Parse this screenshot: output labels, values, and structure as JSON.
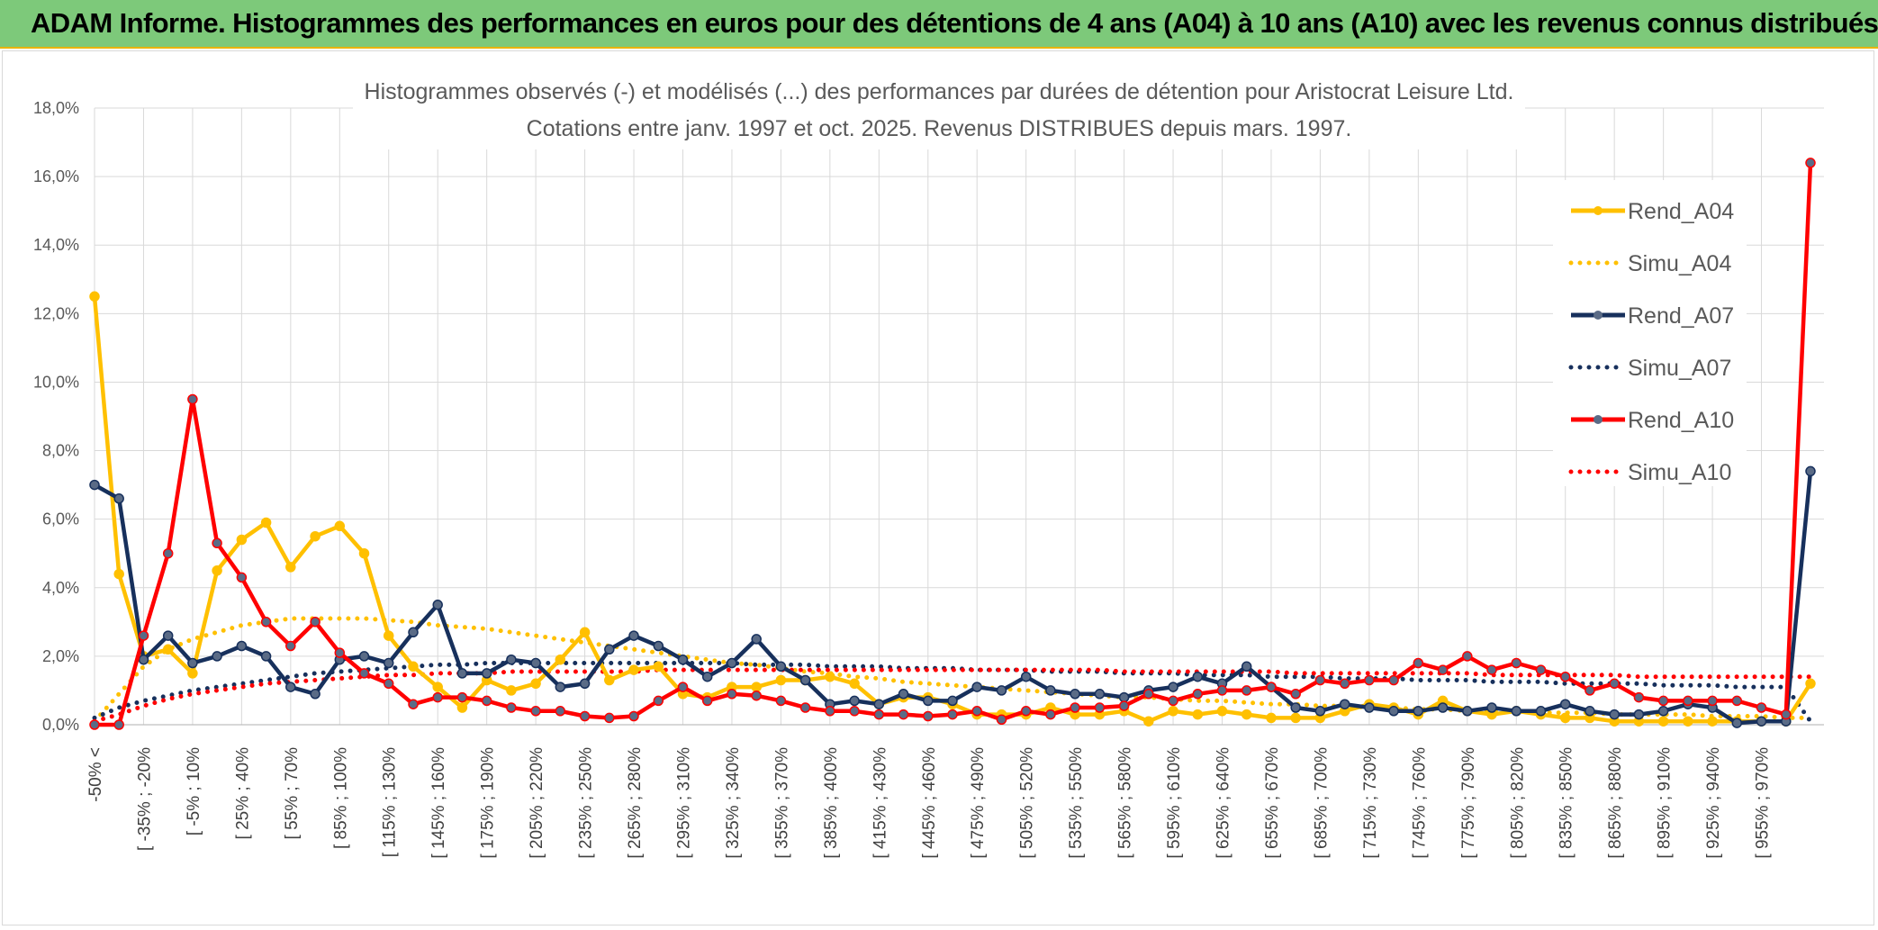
{
  "page": {
    "banner_title": "ADAM Informe. Histogrammes des performances en euros pour des détentions de 4 ans (A04) à 10 ans (A10) avec les revenus connus distribués"
  },
  "chart_data": {
    "type": "line",
    "title": "Histogrammes observés (-) et modélisés (...) des performances par durées de détention pour Aristocrat Leisure Ltd.",
    "subtitle": "Cotations entre janv. 1997 et oct. 2025. Revenus DISTRIBUES depuis mars. 1997.",
    "ylim": [
      0,
      18
    ],
    "yticks": [
      "0,0%",
      "2,0%",
      "4,0%",
      "6,0%",
      "8,0%",
      "10,0%",
      "12,0%",
      "14,0%",
      "16,0%",
      "18,0%"
    ],
    "x_tick_labels": [
      "-50% <",
      "[ -35% ; -20%",
      "[ -5% ; 10%",
      "[ 25% ; 40%",
      "[ 55% ; 70%",
      "[ 85% ; 100%",
      "[ 115% ; 130%",
      "[ 145% ; 160%",
      "[ 175% ; 190%",
      "[ 205% ; 220%",
      "[ 235% ; 250%",
      "[ 265% ; 280%",
      "[ 295% ; 310%",
      "[ 325% ; 340%",
      "[ 355% ; 370%",
      "[ 385% ; 400%",
      "[ 415% ; 430%",
      "[ 445% ; 460%",
      "[ 475% ; 490%",
      "[ 505% ; 520%",
      "[ 535% ; 550%",
      "[ 565% ; 580%",
      "[ 595% ; 610%",
      "[ 625% ; 640%",
      "[ 655% ; 670%",
      "[ 685% ; 700%",
      "[ 715% ; 730%",
      "[ 745% ; 760%",
      "[ 775% ; 790%",
      "[ 805% ; 820%",
      "[ 835% ; 850%",
      "[ 865% ; 880%",
      "[ 895% ; 910%",
      "[ 925% ; 940%",
      "[ 955% ; 970%"
    ],
    "n_points": 71,
    "grid": true,
    "legend_position": "top-right",
    "series": [
      {
        "name": "Rend_A04",
        "style": "solid",
        "markers": true,
        "color": "#FFC000",
        "values": [
          12.5,
          4.4,
          2.0,
          2.2,
          1.5,
          4.5,
          5.4,
          5.9,
          4.6,
          5.5,
          5.8,
          5.0,
          2.6,
          1.7,
          1.1,
          0.5,
          1.3,
          1.0,
          1.2,
          1.9,
          2.7,
          1.3,
          1.6,
          1.7,
          0.9,
          0.8,
          1.1,
          1.1,
          1.3,
          1.3,
          1.4,
          1.2,
          0.6,
          0.8,
          0.8,
          0.6,
          0.3,
          0.3,
          0.3,
          0.5,
          0.3,
          0.3,
          0.4,
          0.1,
          0.4,
          0.3,
          0.4,
          0.3,
          0.2,
          0.2,
          0.2,
          0.4,
          0.6,
          0.5,
          0.3,
          0.7,
          0.4,
          0.3,
          0.4,
          0.3,
          0.2,
          0.2,
          0.1,
          0.1,
          0.1,
          0.1,
          0.1,
          0.1,
          0.1,
          0.1,
          1.2
        ]
      },
      {
        "name": "Simu_A04",
        "style": "dotted",
        "markers": false,
        "color": "#FFC000",
        "values": [
          0.1,
          0.9,
          1.7,
          2.2,
          2.5,
          2.7,
          2.9,
          3.0,
          3.1,
          3.1,
          3.1,
          3.1,
          3.05,
          3.0,
          2.9,
          2.85,
          2.8,
          2.7,
          2.6,
          2.5,
          2.4,
          2.3,
          2.2,
          2.1,
          2.0,
          1.9,
          1.8,
          1.75,
          1.65,
          1.55,
          1.5,
          1.4,
          1.35,
          1.25,
          1.2,
          1.15,
          1.1,
          1.05,
          1.0,
          0.95,
          0.9,
          0.85,
          0.8,
          0.8,
          0.75,
          0.7,
          0.7,
          0.65,
          0.6,
          0.6,
          0.55,
          0.55,
          0.5,
          0.5,
          0.45,
          0.45,
          0.4,
          0.4,
          0.4,
          0.35,
          0.35,
          0.35,
          0.3,
          0.3,
          0.3,
          0.3,
          0.25,
          0.25,
          0.25,
          0.2,
          0.2
        ]
      },
      {
        "name": "Rend_A07",
        "style": "solid",
        "markers": true,
        "color": "#17305C",
        "values": [
          7.0,
          6.6,
          1.9,
          2.6,
          1.8,
          2.0,
          2.3,
          2.0,
          1.1,
          0.9,
          1.9,
          2.0,
          1.8,
          2.7,
          3.5,
          1.5,
          1.5,
          1.9,
          1.8,
          1.1,
          1.2,
          2.2,
          2.6,
          2.3,
          1.9,
          1.4,
          1.8,
          2.5,
          1.7,
          1.3,
          0.6,
          0.7,
          0.6,
          0.9,
          0.7,
          0.7,
          1.1,
          1.0,
          1.4,
          1.0,
          0.9,
          0.9,
          0.8,
          1.0,
          1.1,
          1.4,
          1.2,
          1.7,
          1.1,
          0.5,
          0.4,
          0.6,
          0.5,
          0.4,
          0.4,
          0.5,
          0.4,
          0.5,
          0.4,
          0.4,
          0.6,
          0.4,
          0.3,
          0.3,
          0.4,
          0.6,
          0.5,
          0.05,
          0.1,
          0.1,
          7.4
        ]
      },
      {
        "name": "Simu_A07",
        "style": "dotted",
        "markers": false,
        "color": "#17305C",
        "values": [
          0.2,
          0.5,
          0.7,
          0.85,
          1.0,
          1.1,
          1.2,
          1.3,
          1.4,
          1.5,
          1.55,
          1.6,
          1.65,
          1.7,
          1.75,
          1.75,
          1.8,
          1.8,
          1.8,
          1.8,
          1.8,
          1.8,
          1.8,
          1.8,
          1.8,
          1.8,
          1.8,
          1.75,
          1.75,
          1.75,
          1.7,
          1.7,
          1.7,
          1.65,
          1.65,
          1.65,
          1.6,
          1.6,
          1.6,
          1.55,
          1.55,
          1.55,
          1.5,
          1.5,
          1.5,
          1.45,
          1.45,
          1.45,
          1.4,
          1.4,
          1.4,
          1.35,
          1.35,
          1.35,
          1.3,
          1.3,
          1.3,
          1.25,
          1.25,
          1.25,
          1.2,
          1.2,
          1.2,
          1.2,
          1.15,
          1.15,
          1.15,
          1.1,
          1.1,
          1.1,
          0.1
        ]
      },
      {
        "name": "Rend_A10",
        "style": "solid",
        "markers": true,
        "color": "#FF0000",
        "values": [
          0.0,
          0.0,
          2.6,
          5.0,
          9.5,
          5.3,
          4.3,
          3.0,
          2.3,
          3.0,
          2.1,
          1.5,
          1.2,
          0.6,
          0.8,
          0.8,
          0.7,
          0.5,
          0.4,
          0.4,
          0.25,
          0.2,
          0.25,
          0.7,
          1.1,
          0.7,
          0.9,
          0.85,
          0.7,
          0.5,
          0.4,
          0.4,
          0.3,
          0.3,
          0.25,
          0.3,
          0.4,
          0.15,
          0.4,
          0.3,
          0.5,
          0.5,
          0.55,
          0.9,
          0.7,
          0.9,
          1.0,
          1.0,
          1.1,
          0.9,
          1.3,
          1.2,
          1.3,
          1.3,
          1.8,
          1.6,
          2.0,
          1.6,
          1.8,
          1.6,
          1.4,
          1.0,
          1.2,
          0.8,
          0.7,
          0.7,
          0.7,
          0.7,
          0.5,
          0.3,
          16.4
        ]
      },
      {
        "name": "Simu_A10",
        "style": "dotted",
        "markers": false,
        "color": "#FF0000",
        "values": [
          0.1,
          0.3,
          0.55,
          0.75,
          0.9,
          1.0,
          1.1,
          1.2,
          1.25,
          1.3,
          1.35,
          1.4,
          1.45,
          1.45,
          1.5,
          1.5,
          1.5,
          1.55,
          1.55,
          1.55,
          1.55,
          1.55,
          1.55,
          1.6,
          1.6,
          1.6,
          1.6,
          1.6,
          1.6,
          1.6,
          1.6,
          1.6,
          1.6,
          1.6,
          1.6,
          1.6,
          1.6,
          1.6,
          1.6,
          1.6,
          1.6,
          1.6,
          1.55,
          1.55,
          1.55,
          1.55,
          1.55,
          1.55,
          1.55,
          1.5,
          1.5,
          1.5,
          1.5,
          1.5,
          1.5,
          1.5,
          1.5,
          1.45,
          1.45,
          1.45,
          1.45,
          1.45,
          1.45,
          1.4,
          1.4,
          1.4,
          1.4,
          1.4,
          1.4,
          1.4,
          1.4
        ]
      }
    ]
  }
}
